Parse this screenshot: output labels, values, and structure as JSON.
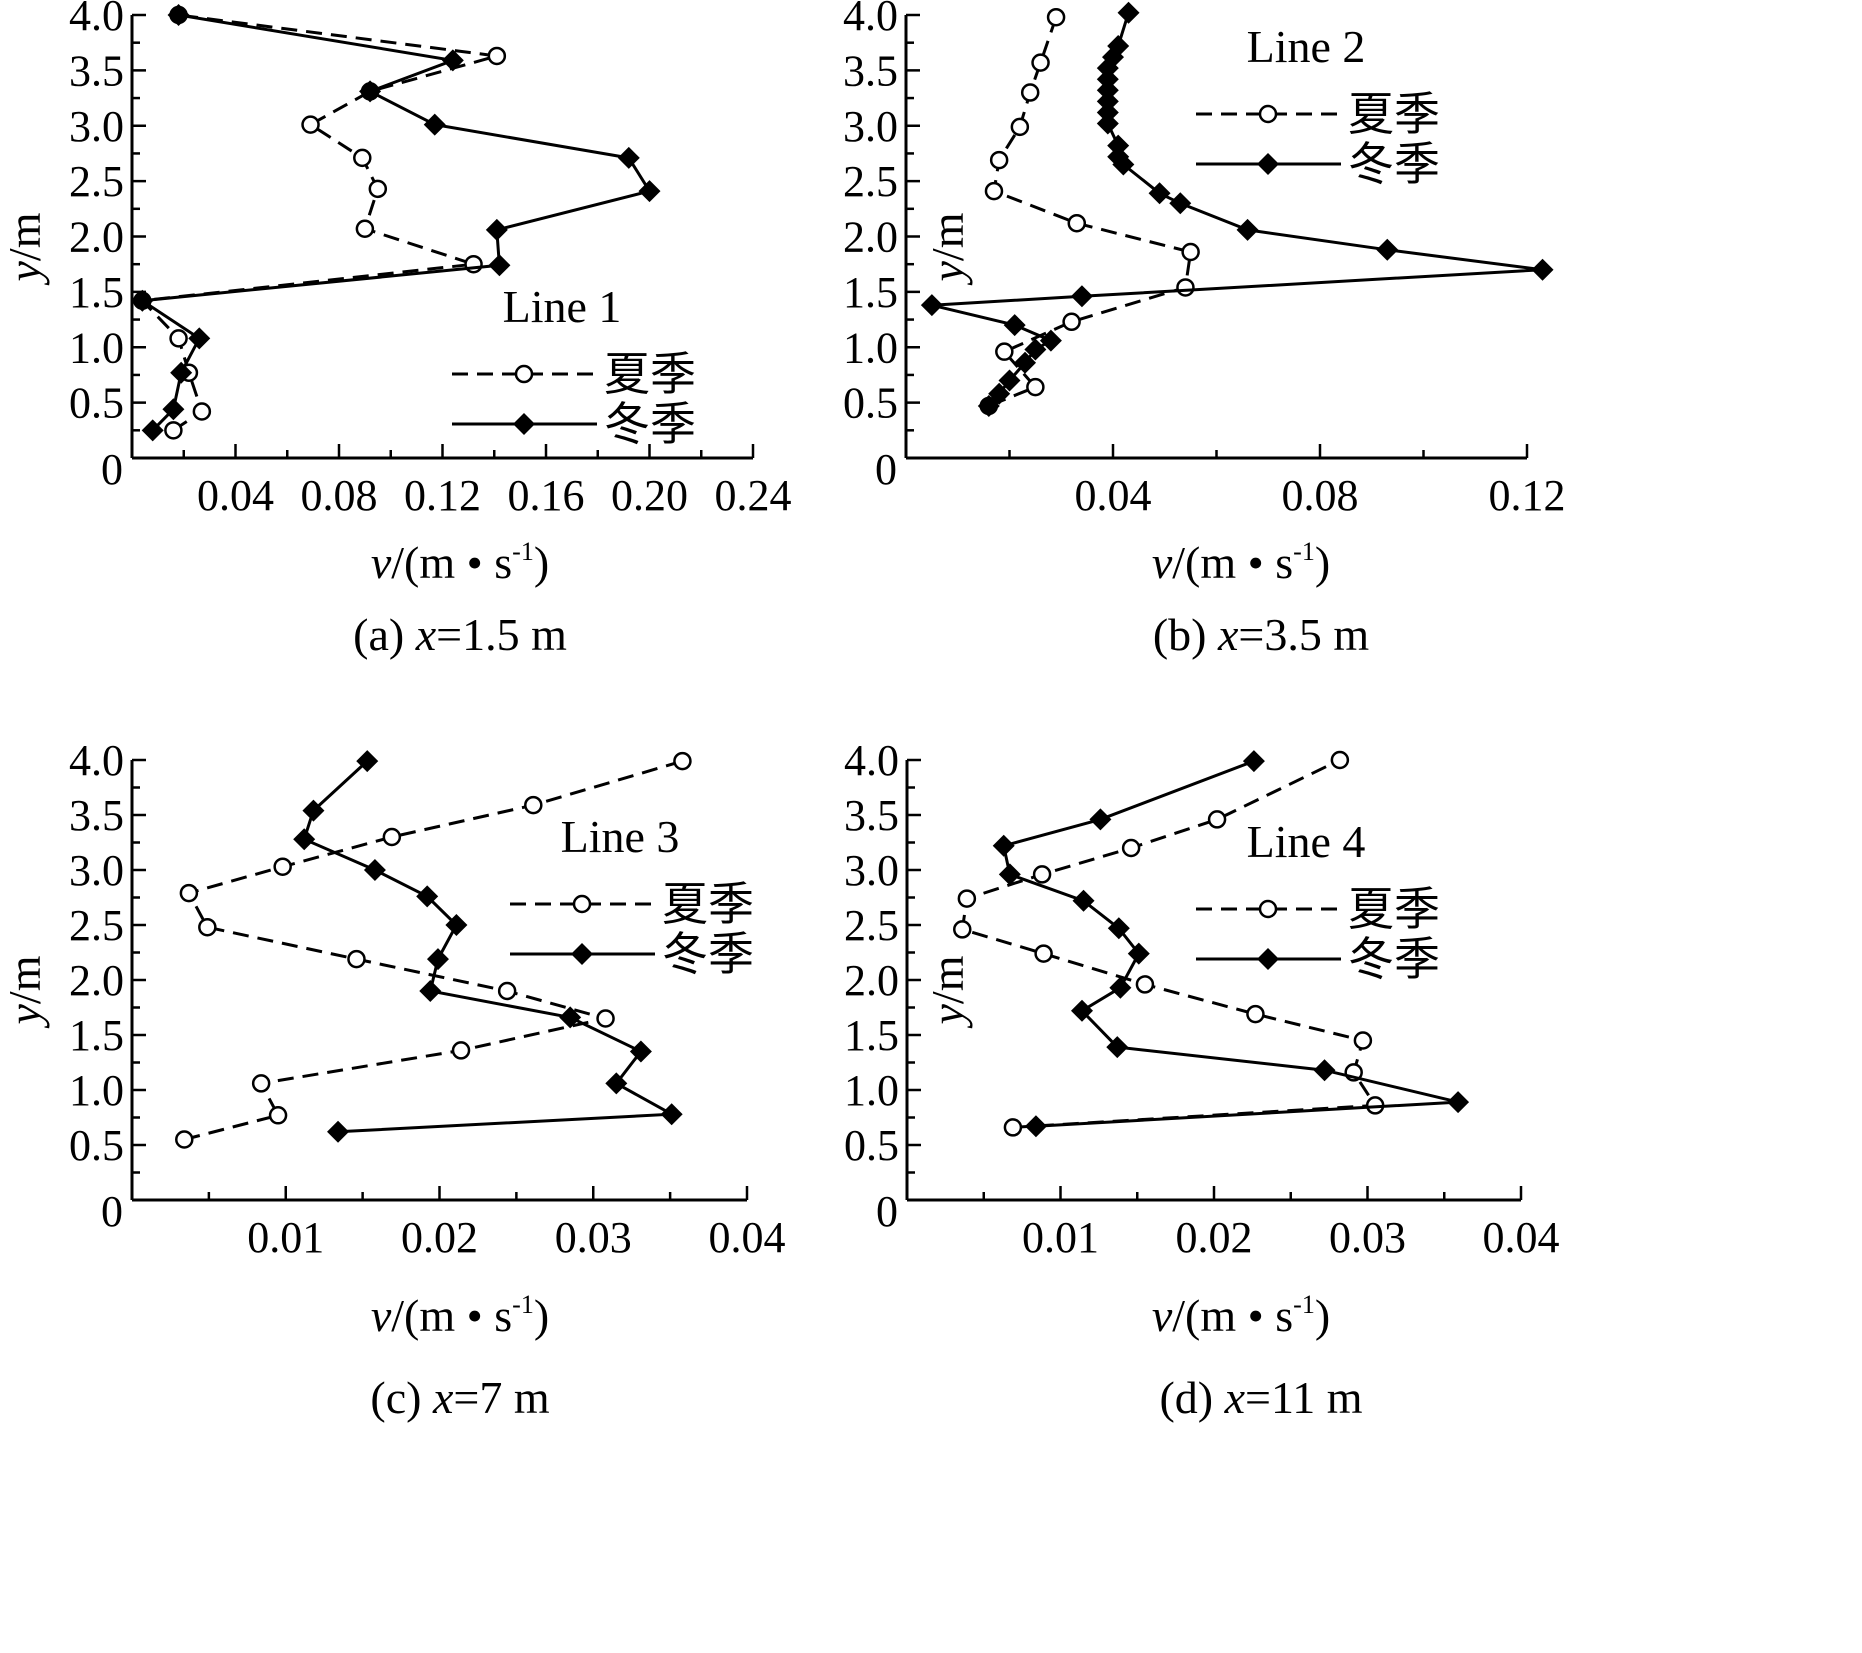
{
  "charts": [
    {
      "caption_prefix": "(a) ",
      "caption_var": "x",
      "caption_rest": "=1.5 m",
      "legend_title": "Line 1",
      "xlabel_var": "v",
      "xlabel_unit": "/(m • s",
      "xlabel_sup": "-1",
      "xlabel_close": ")",
      "ylabel_var": "y",
      "ylabel_unit": "/m",
      "xtick_labels": [
        "0",
        "0.04",
        "0.08",
        "0.12",
        "0.16",
        "0.20",
        "0.24"
      ],
      "ytick_labels": [
        "0.5",
        "1.0",
        "1.5",
        "2.0",
        "2.5",
        "3.0",
        "3.5",
        "4.0"
      ]
    },
    {
      "caption_prefix": "(b) ",
      "caption_var": "x",
      "caption_rest": "=3.5 m",
      "legend_title": "Line 2",
      "xlabel_var": "v",
      "xlabel_unit": "/(m • s",
      "xlabel_sup": "-1",
      "xlabel_close": ")",
      "ylabel_var": "y",
      "ylabel_unit": "/m",
      "xtick_labels": [
        "0",
        "0.04",
        "0.08",
        "0.12"
      ],
      "ytick_labels": [
        "0.5",
        "1.0",
        "1.5",
        "2.0",
        "2.5",
        "3.0",
        "3.5",
        "4.0"
      ]
    },
    {
      "caption_prefix": "(c) ",
      "caption_var": "x",
      "caption_rest": "=7 m",
      "legend_title": "Line 3",
      "xlabel_var": "v",
      "xlabel_unit": "/(m • s",
      "xlabel_sup": "-1",
      "xlabel_close": ")",
      "ylabel_var": "y",
      "ylabel_unit": "/m",
      "xtick_labels": [
        "0",
        "0.01",
        "0.02",
        "0.03",
        "0.04"
      ],
      "ytick_labels": [
        "0.5",
        "1.0",
        "1.5",
        "2.0",
        "2.5",
        "3.0",
        "3.5",
        "4.0"
      ]
    },
    {
      "caption_prefix": "(d) ",
      "caption_var": "x",
      "caption_rest": "=11 m",
      "legend_title": "Line 4",
      "xlabel_var": "v",
      "xlabel_unit": "/(m • s",
      "xlabel_sup": "-1",
      "xlabel_close": ")",
      "ylabel_var": "y",
      "ylabel_unit": "/m",
      "xtick_labels": [
        "0",
        "0.01",
        "0.02",
        "0.03",
        "0.04"
      ],
      "ytick_labels": [
        "0.5",
        "1.0",
        "1.5",
        "2.0",
        "2.5",
        "3.0",
        "3.5",
        "4.0"
      ]
    }
  ],
  "chart_data": [
    {
      "type": "line",
      "xlim": [
        0,
        0.24
      ],
      "ylim": [
        0,
        4.0
      ],
      "xticks": [
        0.04,
        0.08,
        0.12,
        0.16,
        0.2,
        0.24
      ],
      "yticks": [
        0.5,
        1.0,
        1.5,
        2.0,
        2.5,
        3.0,
        3.5,
        4.0
      ],
      "legend_position": "bottom-right",
      "series": [
        {
          "name": "夏季",
          "style": "dashed",
          "marker": "open-circle",
          "points": [
            [
              0.016,
              0.25
            ],
            [
              0.027,
              0.42
            ],
            [
              0.022,
              0.77
            ],
            [
              0.018,
              1.08
            ],
            [
              0.004,
              1.42
            ],
            [
              0.132,
              1.75
            ],
            [
              0.09,
              2.07
            ],
            [
              0.095,
              2.43
            ],
            [
              0.089,
              2.71
            ],
            [
              0.069,
              3.01
            ],
            [
              0.092,
              3.31
            ],
            [
              0.141,
              3.63
            ],
            [
              0.018,
              4.0
            ]
          ]
        },
        {
          "name": "冬季",
          "style": "solid",
          "marker": "filled-diamond",
          "points": [
            [
              0.008,
              0.25
            ],
            [
              0.016,
              0.44
            ],
            [
              0.019,
              0.77
            ],
            [
              0.026,
              1.08
            ],
            [
              0.004,
              1.42
            ],
            [
              0.142,
              1.74
            ],
            [
              0.141,
              2.06
            ],
            [
              0.2,
              2.41
            ],
            [
              0.192,
              2.71
            ],
            [
              0.117,
              3.01
            ],
            [
              0.092,
              3.31
            ],
            [
              0.124,
              3.59
            ],
            [
              0.018,
              4.0
            ]
          ]
        }
      ]
    },
    {
      "type": "line",
      "xlim": [
        0,
        0.12
      ],
      "ylim": [
        0,
        4.0
      ],
      "xticks": [
        0.04,
        0.08,
        0.12
      ],
      "yticks": [
        0.5,
        1.0,
        1.5,
        2.0,
        2.5,
        3.0,
        3.5,
        4.0
      ],
      "legend_position": "top-right",
      "series": [
        {
          "name": "夏季",
          "style": "dashed",
          "marker": "open-circle",
          "points": [
            [
              0.029,
              3.98
            ],
            [
              0.026,
              3.57
            ],
            [
              0.024,
              3.3
            ],
            [
              0.022,
              2.99
            ],
            [
              0.018,
              2.69
            ],
            [
              0.017,
              2.41
            ],
            [
              0.033,
              2.12
            ],
            [
              0.055,
              1.86
            ],
            [
              0.054,
              1.54
            ],
            [
              0.032,
              1.23
            ],
            [
              0.019,
              0.96
            ],
            [
              0.025,
              0.64
            ],
            [
              0.016,
              0.47
            ]
          ]
        },
        {
          "name": "冬季",
          "style": "solid",
          "marker": "filled-diamond",
          "points": [
            [
              0.043,
              4.02
            ],
            [
              0.041,
              3.72
            ],
            [
              0.04,
              3.62
            ],
            [
              0.039,
              3.52
            ],
            [
              0.039,
              3.42
            ],
            [
              0.039,
              3.32
            ],
            [
              0.039,
              3.22
            ],
            [
              0.039,
              3.12
            ],
            [
              0.039,
              3.02
            ],
            [
              0.041,
              2.82
            ],
            [
              0.041,
              2.72
            ],
            [
              0.042,
              2.65
            ],
            [
              0.049,
              2.39
            ],
            [
              0.053,
              2.3
            ],
            [
              0.066,
              2.06
            ],
            [
              0.093,
              1.88
            ],
            [
              0.123,
              1.7
            ],
            [
              0.034,
              1.46
            ],
            [
              0.005,
              1.38
            ],
            [
              0.021,
              1.2
            ],
            [
              0.028,
              1.06
            ],
            [
              0.025,
              0.98
            ],
            [
              0.023,
              0.86
            ],
            [
              0.02,
              0.7
            ],
            [
              0.018,
              0.58
            ],
            [
              0.016,
              0.47
            ]
          ]
        }
      ]
    },
    {
      "type": "line",
      "xlim": [
        0,
        0.04
      ],
      "ylim": [
        0,
        4.0
      ],
      "xticks": [
        0.01,
        0.02,
        0.03,
        0.04
      ],
      "yticks": [
        0.5,
        1.0,
        1.5,
        2.0,
        2.5,
        3.0,
        3.5,
        4.0
      ],
      "legend_position": "top-right",
      "series": [
        {
          "name": "夏季",
          "style": "dashed",
          "marker": "open-circle",
          "points": [
            [
              0.0034,
              0.55
            ],
            [
              0.0095,
              0.77
            ],
            [
              0.0084,
              1.06
            ],
            [
              0.0214,
              1.36
            ],
            [
              0.0308,
              1.65
            ],
            [
              0.0244,
              1.9
            ],
            [
              0.0146,
              2.19
            ],
            [
              0.0049,
              2.48
            ],
            [
              0.0037,
              2.79
            ],
            [
              0.0098,
              3.03
            ],
            [
              0.0169,
              3.3
            ],
            [
              0.0261,
              3.59
            ],
            [
              0.0358,
              3.99
            ]
          ]
        },
        {
          "name": "冬季",
          "style": "solid",
          "marker": "filled-diamond",
          "points": [
            [
              0.0134,
              0.62
            ],
            [
              0.0351,
              0.78
            ],
            [
              0.0315,
              1.06
            ],
            [
              0.0331,
              1.35
            ],
            [
              0.0285,
              1.66
            ],
            [
              0.0194,
              1.9
            ],
            [
              0.0199,
              2.19
            ],
            [
              0.0211,
              2.5
            ],
            [
              0.0192,
              2.76
            ],
            [
              0.0158,
              3.0
            ],
            [
              0.0112,
              3.28
            ],
            [
              0.0118,
              3.54
            ],
            [
              0.0153,
              3.99
            ]
          ]
        }
      ]
    },
    {
      "type": "line",
      "xlim": [
        0,
        0.04
      ],
      "ylim": [
        0,
        4.0
      ],
      "xticks": [
        0.01,
        0.02,
        0.03,
        0.04
      ],
      "yticks": [
        0.5,
        1.0,
        1.5,
        2.0,
        2.5,
        3.0,
        3.5,
        4.0
      ],
      "legend_position": "top-right",
      "series": [
        {
          "name": "夏季",
          "style": "dashed",
          "marker": "open-circle",
          "points": [
            [
              0.0069,
              0.66
            ],
            [
              0.0305,
              0.86
            ],
            [
              0.0291,
              1.16
            ],
            [
              0.0297,
              1.45
            ],
            [
              0.0227,
              1.69
            ],
            [
              0.0155,
              1.96
            ],
            [
              0.0089,
              2.24
            ],
            [
              0.0036,
              2.46
            ],
            [
              0.0039,
              2.74
            ],
            [
              0.0088,
              2.96
            ],
            [
              0.0146,
              3.2
            ],
            [
              0.0202,
              3.46
            ],
            [
              0.0282,
              4.0
            ]
          ]
        },
        {
          "name": "冬季",
          "style": "solid",
          "marker": "filled-diamond",
          "points": [
            [
              0.0084,
              0.67
            ],
            [
              0.0359,
              0.89
            ],
            [
              0.0272,
              1.18
            ],
            [
              0.0137,
              1.39
            ],
            [
              0.0114,
              1.72
            ],
            [
              0.0139,
              1.93
            ],
            [
              0.0151,
              2.24
            ],
            [
              0.0138,
              2.47
            ],
            [
              0.0115,
              2.72
            ],
            [
              0.0067,
              2.96
            ],
            [
              0.0063,
              3.22
            ],
            [
              0.0126,
              3.46
            ],
            [
              0.0226,
              3.99
            ]
          ]
        }
      ]
    }
  ]
}
